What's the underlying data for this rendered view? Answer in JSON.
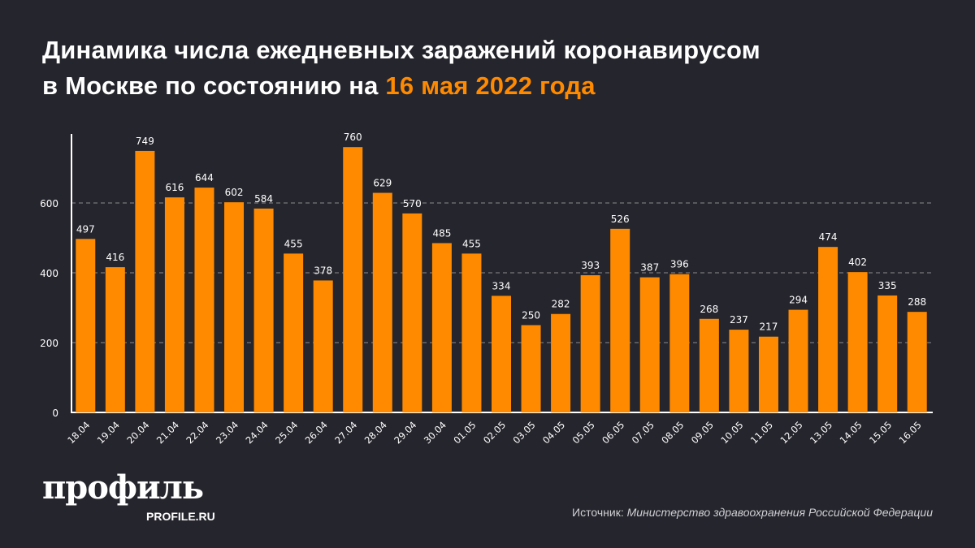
{
  "title": {
    "line1": "Динамика числа ежедневных заражений коронавирусом",
    "line2_prefix": "в Москве по состоянию на ",
    "line2_highlight": "16 мая 2022 года"
  },
  "logo": {
    "name": "профиль",
    "site": "PROFILE.RU"
  },
  "source": {
    "label": "Источник: ",
    "value": "Министерство здравоохранения Российской Федерации"
  },
  "colors": {
    "bar": "#ff8a00",
    "background": "#25252d",
    "highlight": "#ff8a00"
  },
  "chart_data": {
    "type": "bar",
    "categories": [
      "18.04",
      "19.04",
      "20.04",
      "21.04",
      "22.04",
      "23.04",
      "24.04",
      "25.04",
      "26.04",
      "27.04",
      "28.04",
      "29.04",
      "30.04",
      "01.05",
      "02.05",
      "03.05",
      "04.05",
      "05.05",
      "06.05",
      "07.05",
      "08.05",
      "09.05",
      "10.05",
      "11.05",
      "12.05",
      "13.05",
      "14.05",
      "15.05",
      "16.05"
    ],
    "values": [
      497,
      416,
      749,
      616,
      644,
      602,
      584,
      455,
      378,
      760,
      629,
      570,
      485,
      455,
      334,
      250,
      282,
      393,
      526,
      387,
      396,
      268,
      237,
      217,
      294,
      474,
      402,
      335,
      288
    ],
    "yticks": [
      0,
      200,
      400,
      600
    ],
    "ylim": [
      0,
      800
    ],
    "grid": "horizontal dashed",
    "data_labels": true
  }
}
